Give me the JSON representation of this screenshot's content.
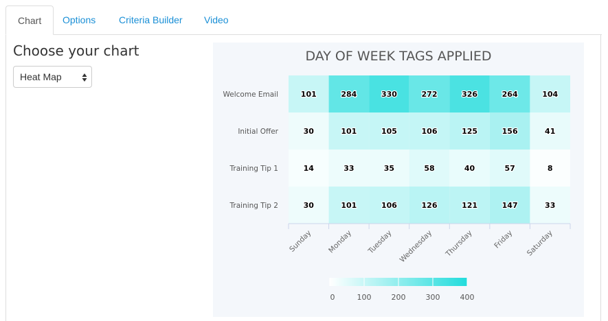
{
  "tabs": [
    {
      "label": "Chart",
      "active": true
    },
    {
      "label": "Options",
      "active": false
    },
    {
      "label": "Criteria Builder",
      "active": false
    },
    {
      "label": "Video",
      "active": false
    }
  ],
  "sidebar": {
    "title": "Choose your chart",
    "chart_type_select": {
      "selected": "Heat Map"
    }
  },
  "colors": {
    "tab_link": "#1a8fd6",
    "heat_low": "#ffffff",
    "heat_high": "#22dcdc",
    "chart_background": "#f4f7fb"
  },
  "chart_data": {
    "type": "heatmap",
    "title": "DAY OF WEEK TAGS APPLIED",
    "x_categories": [
      "Sunday",
      "Monday",
      "Tuesday",
      "Wednesday",
      "Thursday",
      "Friday",
      "Saturday"
    ],
    "y_categories": [
      "Welcome Email",
      "Initial Offer",
      "Training Tip 1",
      "Training Tip 2"
    ],
    "values": [
      [
        101,
        284,
        330,
        272,
        326,
        264,
        104
      ],
      [
        30,
        101,
        105,
        106,
        125,
        156,
        41
      ],
      [
        14,
        33,
        35,
        58,
        40,
        57,
        8
      ],
      [
        30,
        101,
        106,
        126,
        121,
        147,
        33
      ]
    ],
    "color_axis": {
      "min": 0,
      "max": 400,
      "ticks": [
        0,
        100,
        200,
        300,
        400
      ]
    },
    "legend_placement": "bottom-center",
    "grid": false
  }
}
